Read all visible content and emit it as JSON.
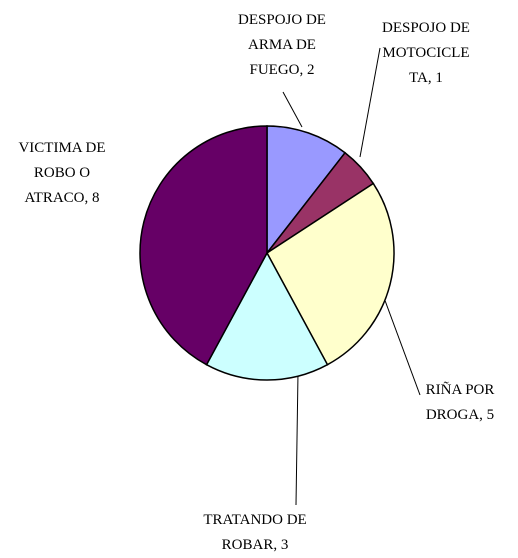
{
  "chart_data": {
    "type": "pie",
    "categories": [
      "DESPOJO DE ARMA DE FUEGO, 2",
      "DESPOJO DE MOTOCICLETA, 1",
      "RIÑA POR DROGA, 5",
      "TRATANDO DE ROBAR, 3",
      "VICTIMA DE ROBO O ATRACO, 8"
    ],
    "values": [
      2,
      1,
      5,
      3,
      8
    ],
    "colors": [
      "#9999ff",
      "#993366",
      "#ffffcc",
      "#ccffff",
      "#660066"
    ]
  }
}
